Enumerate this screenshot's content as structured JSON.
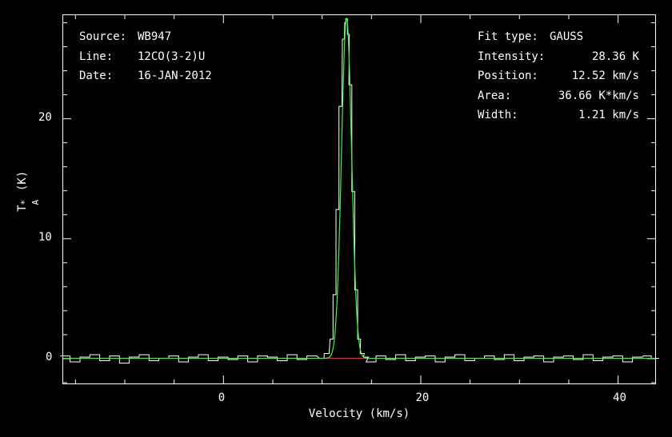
{
  "chart_data": {
    "type": "line",
    "xlabel": "Velocity (km/s)",
    "ylabel_main": "T",
    "ylabel_sub": "A",
    "ylabel_sup": "*",
    "ylabel_unit": "(K)",
    "xlim": [
      -16.2,
      43.8
    ],
    "ylim": [
      -2.1,
      28.6
    ],
    "xticks": [
      0,
      20,
      40
    ],
    "yticks": [
      0,
      10,
      20
    ],
    "grid": false,
    "series": [
      {
        "role": "spectrum",
        "color": "#ffffff",
        "x": [
          -16.0,
          -15.0,
          -14.0,
          -13.0,
          -12.0,
          -11.0,
          -10.0,
          -9.0,
          -8.0,
          -7.0,
          -6.0,
          -5.0,
          -4.0,
          -3.0,
          -2.0,
          -1.0,
          0.0,
          1.0,
          2.0,
          3.0,
          4.0,
          5.0,
          6.0,
          7.0,
          8.0,
          9.0,
          10.0,
          10.5,
          11.0,
          11.3,
          11.6,
          11.9,
          12.2,
          12.4,
          12.52,
          12.7,
          12.9,
          13.2,
          13.5,
          13.8,
          14.1,
          14.5,
          15.0,
          16.0,
          17.0,
          18.0,
          19.0,
          20.0,
          21.0,
          22.0,
          23.0,
          24.0,
          25.0,
          26.0,
          27.0,
          28.0,
          29.0,
          30.0,
          31.0,
          32.0,
          33.0,
          34.0,
          35.0,
          36.0,
          37.0,
          38.0,
          39.0,
          40.0,
          41.0,
          42.0,
          43.0,
          43.8
        ],
        "y": [
          0.2,
          -0.3,
          0.1,
          0.3,
          -0.2,
          0.2,
          -0.4,
          0.1,
          0.3,
          -0.2,
          0.0,
          0.2,
          -0.3,
          0.1,
          0.3,
          -0.2,
          0.1,
          -0.1,
          0.2,
          -0.3,
          0.2,
          0.1,
          -0.2,
          0.3,
          -0.1,
          0.2,
          0.0,
          0.4,
          1.6,
          5.3,
          12.4,
          21.0,
          26.6,
          28.0,
          28.3,
          27.0,
          22.8,
          13.9,
          5.7,
          1.6,
          0.4,
          0.1,
          -0.3,
          0.2,
          -0.1,
          0.3,
          -0.2,
          0.1,
          0.2,
          -0.3,
          0.1,
          0.3,
          -0.2,
          0.0,
          0.2,
          -0.1,
          0.3,
          -0.2,
          0.1,
          0.2,
          -0.3,
          0.1,
          0.2,
          -0.1,
          0.3,
          -0.2,
          0.1,
          0.2,
          -0.3,
          0.1,
          0.2,
          0.0
        ]
      },
      {
        "role": "gauss-fit",
        "color": "#33ff33",
        "amplitude": 28.36,
        "center": 12.52,
        "fwhm": 1.21
      },
      {
        "role": "baseline",
        "color": "#ff2222",
        "x": [
          10.2,
          14.8
        ],
        "y": [
          0,
          0
        ]
      }
    ]
  },
  "info_left": [
    {
      "key": "Source:",
      "value": "WB947"
    },
    {
      "key": "Line:",
      "value": "12CO(3-2)U"
    },
    {
      "key": "Date:",
      "value": "16-JAN-2012"
    }
  ],
  "info_right": [
    {
      "key": "Fit type:",
      "value": "GAUSS"
    },
    {
      "key": "Intensity:",
      "value": "28.36 K"
    },
    {
      "key": "Position:",
      "value": "12.52 km/s"
    },
    {
      "key": "Area:",
      "value": "36.66 K*km/s"
    },
    {
      "key": "Width:",
      "value": "1.21 km/s"
    }
  ]
}
